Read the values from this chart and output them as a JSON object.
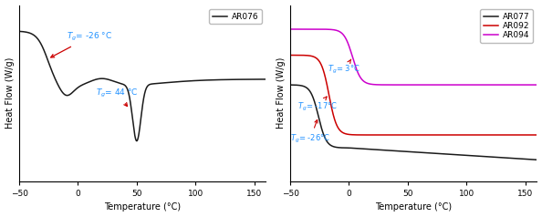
{
  "xlim": [
    -50,
    160
  ],
  "xlabel": "Temperature (°C)",
  "ylabel": "Heat Flow (W/g)",
  "plot1_legend": "AR076",
  "plot1_line_color": "#1a1a1a",
  "plot2_legend": [
    "AR077",
    "AR092",
    "AR094"
  ],
  "plot2_colors": [
    "#1a1a1a",
    "#cc0000",
    "#cc00cc"
  ],
  "ann_color": "#1e90ff",
  "arr_color": "#cc0000"
}
